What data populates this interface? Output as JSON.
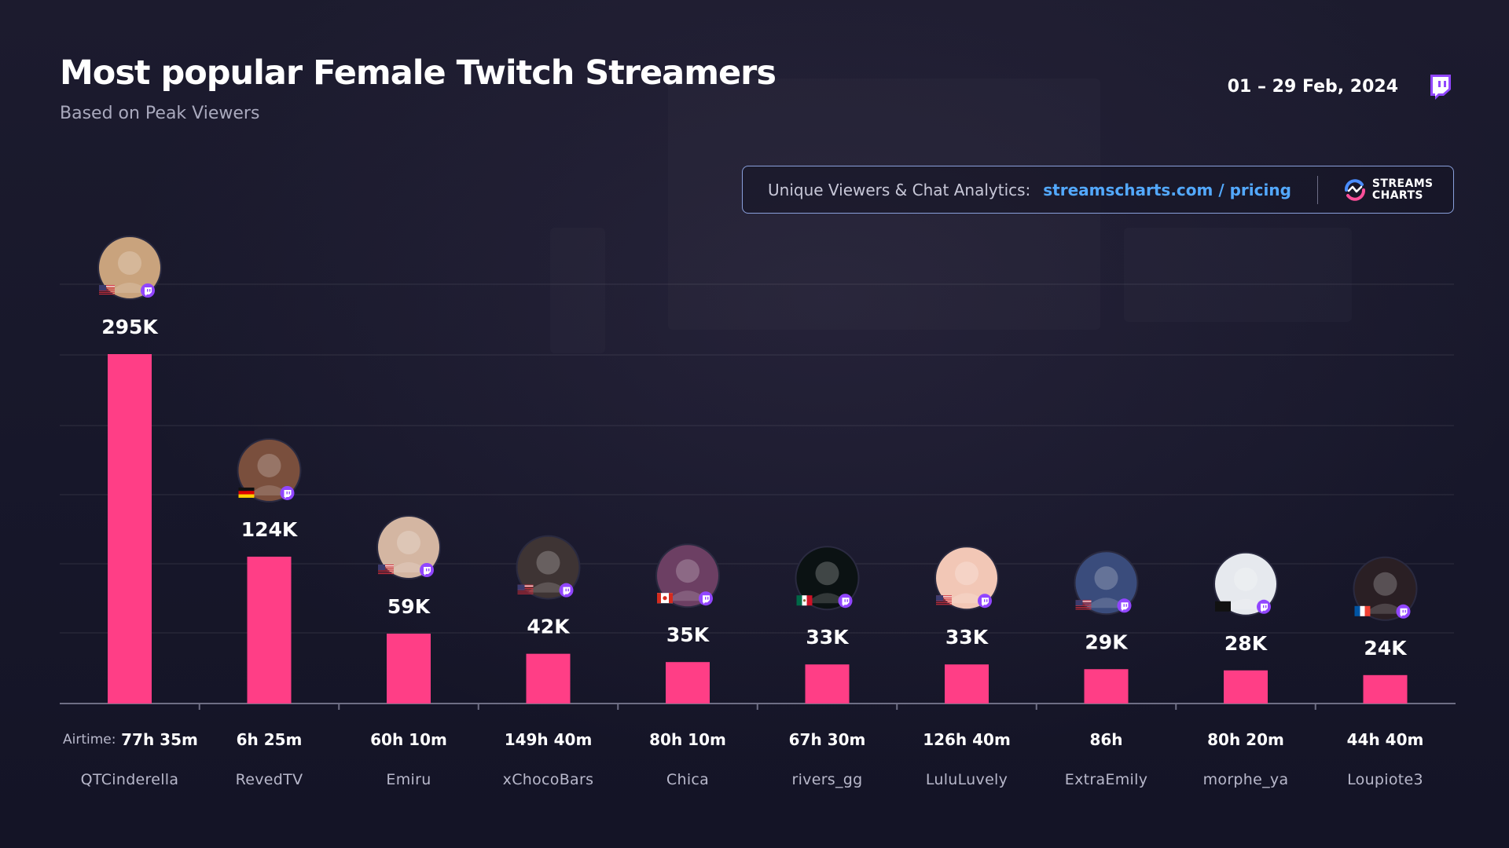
{
  "title": "Most popular Female Twitch Streamers",
  "subtitle": "Based on Peak Viewers",
  "date_range": "01 – 29 Feb, 2024",
  "promo": {
    "text": "Unique Viewers & Chat Analytics:",
    "link": "streamscharts.com / pricing",
    "brand_line1": "STREAMS",
    "brand_line2": "CHARTS"
  },
  "airtime_label": "Airtime:",
  "colors": {
    "bar": "#ff3e86",
    "twitch": "#9146ff",
    "link": "#53a9ff"
  },
  "chart_data": {
    "type": "bar",
    "title": "Most popular Female Twitch Streamers",
    "subtitle": "Based on Peak Viewers",
    "xlabel": "",
    "ylabel": "",
    "ylim": [
      0,
      300000
    ],
    "grid": true,
    "categories": [
      "QTCinderella",
      "RevedTV",
      "Emiru",
      "xChocoBars",
      "Chica",
      "rivers_gg",
      "LuluLuvely",
      "ExtraEmily",
      "morphe_ya",
      "Loupiote3"
    ],
    "values": [
      295000,
      124000,
      59000,
      42000,
      35000,
      33000,
      33000,
      29000,
      28000,
      24000
    ],
    "value_labels": [
      "295K",
      "124K",
      "59K",
      "42K",
      "35K",
      "33K",
      "33K",
      "29K",
      "28K",
      "24K"
    ],
    "airtime": [
      "77h 35m",
      "6h 25m",
      "60h 10m",
      "149h 40m",
      "80h 10m",
      "67h 30m",
      "126h 40m",
      "86h",
      "80h 20m",
      "44h 40m"
    ],
    "countries": [
      "us",
      "de",
      "us",
      "us",
      "ca",
      "mx",
      "us",
      "us",
      "jp",
      "fr"
    ],
    "platform_icons": [
      "twitch-icon",
      "twitch-icon",
      "twitch-icon",
      "twitch-icon",
      "twitch-icon",
      "twitch-icon",
      "twitch-icon",
      "twitch-icon",
      "twitch-icon",
      "twitch-icon"
    ]
  }
}
